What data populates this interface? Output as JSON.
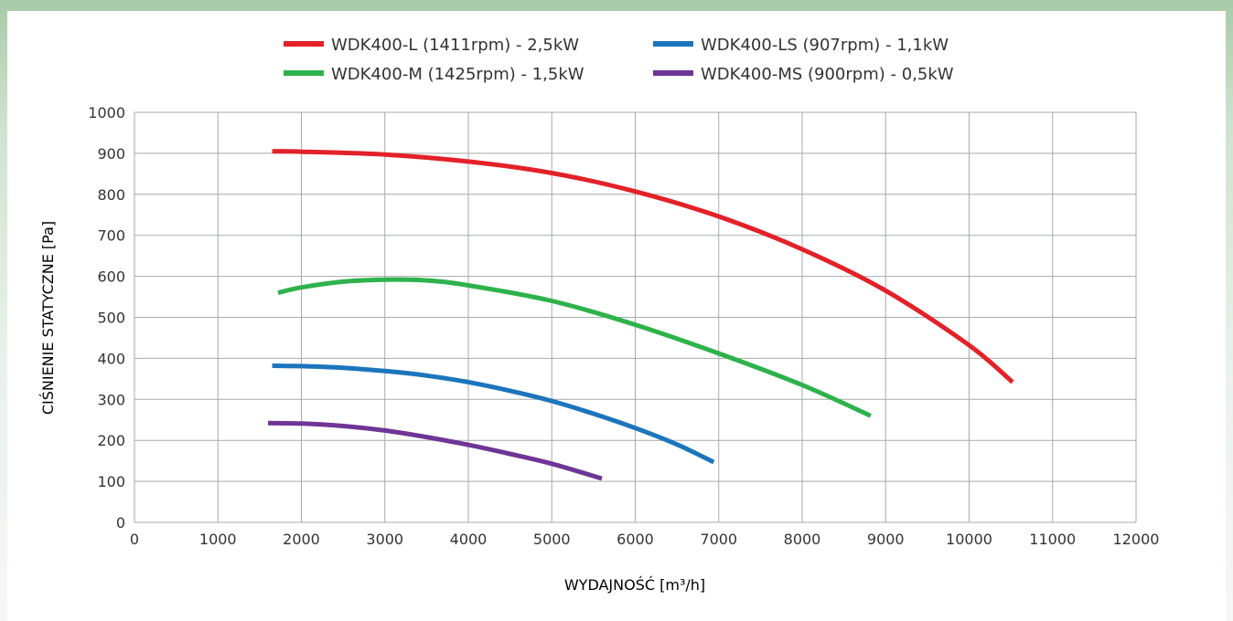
{
  "chart_data": {
    "type": "line",
    "title": "",
    "xlabel": "WYDAJNOŚĆ [m³/h]",
    "ylabel": "CIŚNIENIE STATYCZNE [Pa]",
    "xlim": [
      0,
      12000
    ],
    "ylim": [
      0,
      1000
    ],
    "x_ticks": [
      "0",
      "1000",
      "2000",
      "3000",
      "4000",
      "5000",
      "6000",
      "7000",
      "8000",
      "9000",
      "10000",
      "11000",
      "12000"
    ],
    "y_ticks": [
      "0",
      "100",
      "200",
      "300",
      "400",
      "500",
      "600",
      "700",
      "800",
      "900",
      "1000"
    ],
    "grid": true,
    "legend_position": "top",
    "series": [
      {
        "name": "WDK400-L (1411rpm) - 2,5kW",
        "color": "#e32128",
        "points": [
          [
            1650,
            905
          ],
          [
            2000,
            904
          ],
          [
            3000,
            897
          ],
          [
            4000,
            880
          ],
          [
            5000,
            852
          ],
          [
            6000,
            807
          ],
          [
            7000,
            746
          ],
          [
            8000,
            666
          ],
          [
            9000,
            565
          ],
          [
            10000,
            432
          ],
          [
            10520,
            342
          ]
        ]
      },
      {
        "name": "WDK400-M (1425rpm) - 1,5kW",
        "color": "#2eb24b",
        "points": [
          [
            1720,
            560
          ],
          [
            2000,
            573
          ],
          [
            2500,
            587
          ],
          [
            3000,
            592
          ],
          [
            3500,
            590
          ],
          [
            4000,
            578
          ],
          [
            5000,
            540
          ],
          [
            6000,
            482
          ],
          [
            7000,
            412
          ],
          [
            8000,
            335
          ],
          [
            8820,
            260
          ]
        ]
      },
      {
        "name": "WDK400-LS (907rpm) - 1,1kW",
        "color": "#1b75bc",
        "points": [
          [
            1650,
            382
          ],
          [
            2000,
            381
          ],
          [
            2500,
            377
          ],
          [
            3000,
            369
          ],
          [
            3500,
            358
          ],
          [
            4000,
            342
          ],
          [
            4500,
            321
          ],
          [
            5000,
            296
          ],
          [
            5500,
            265
          ],
          [
            6000,
            230
          ],
          [
            6500,
            190
          ],
          [
            6940,
            147
          ]
        ]
      },
      {
        "name": "WDK400-MS (900rpm) - 0,5kW",
        "color": "#6f3596",
        "points": [
          [
            1600,
            242
          ],
          [
            2000,
            241
          ],
          [
            2500,
            235
          ],
          [
            3000,
            224
          ],
          [
            3500,
            208
          ],
          [
            4000,
            189
          ],
          [
            4500,
            167
          ],
          [
            5000,
            143
          ],
          [
            5600,
            107
          ]
        ]
      }
    ]
  }
}
